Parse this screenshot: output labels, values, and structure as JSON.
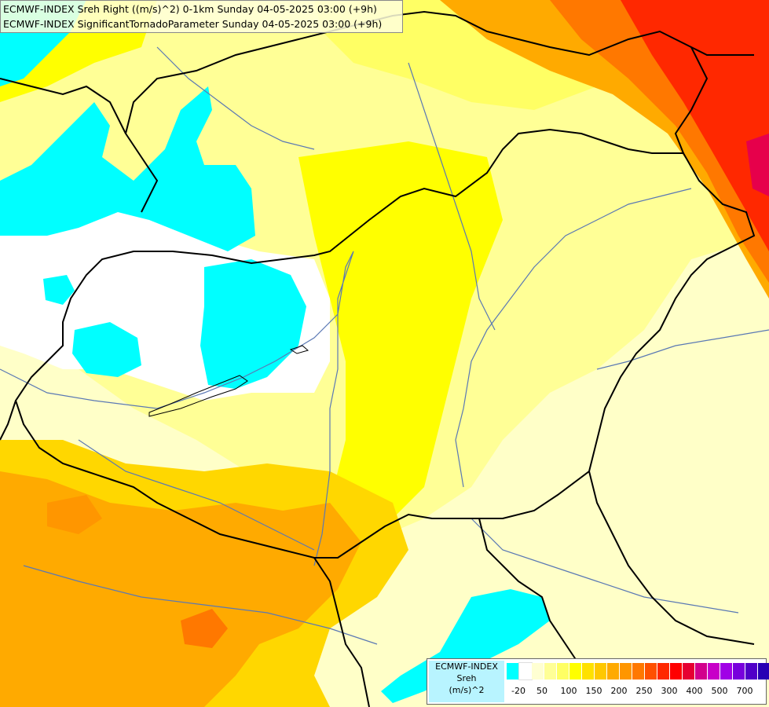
{
  "header": {
    "line1": "ECMWF-INDEX Sreh Right ((m/s)^2) 0-1km Sunday 04-05-2025 03:00 (+9h)",
    "line2": "ECMWF-INDEX SignificantTornadoParameter Sunday 04-05-2025 03:00 (+9h)"
  },
  "legend": {
    "title_line1": "ECMWF-INDEX",
    "title_line2": "Sreh",
    "title_line3": "(m/s)^2",
    "colors": [
      "#00ffff",
      "#ffffff",
      "#ffffd2",
      "#ffff96",
      "#ffff64",
      "#ffff00",
      "#ffe100",
      "#ffc800",
      "#ffaa00",
      "#ff9600",
      "#ff7800",
      "#ff5000",
      "#ff2800",
      "#ff0000",
      "#e60032",
      "#d2008c",
      "#c800c8",
      "#a000e6",
      "#7800dc",
      "#5000c8",
      "#2800b4",
      "#000078"
    ],
    "ticks": [
      "-20",
      "50",
      "100",
      "150",
      "200",
      "250",
      "300",
      "400",
      "500",
      "700"
    ]
  },
  "map": {
    "colors": {
      "cyan": "#00ffff",
      "white": "#ffffff",
      "pale_yellow": "#ffffc8",
      "light_yellow": "#ffff96",
      "yellow": "#ffff00",
      "gold": "#ffd700",
      "orange": "#ffaa00",
      "dark_orange": "#ff7800",
      "red": "#ff2800",
      "magenta": "#e6004b",
      "border": "#000000",
      "river": "#5a78b4"
    }
  }
}
